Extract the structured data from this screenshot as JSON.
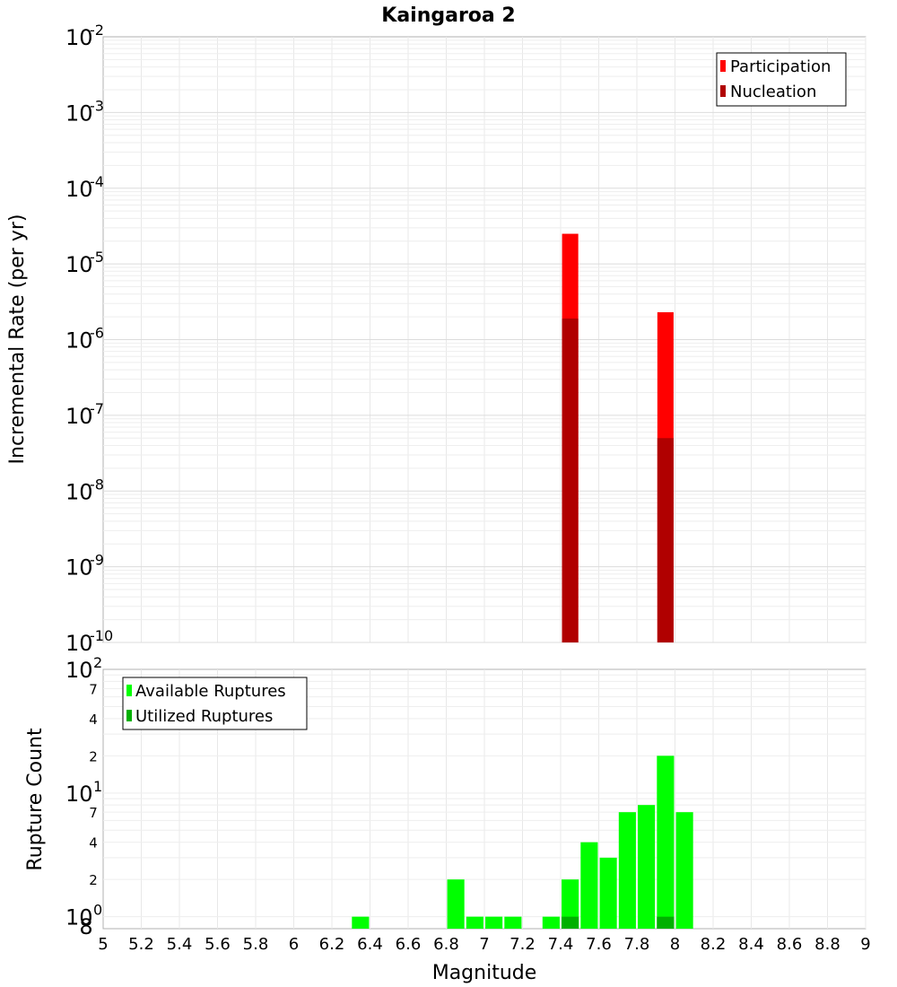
{
  "chart_data": [
    {
      "type": "bar",
      "title": "Kaingaroa 2",
      "ylabel": "Incremental Rate (per yr)",
      "yscale": "log",
      "ylim": [
        1e-10,
        0.01
      ],
      "xlim": [
        5,
        9
      ],
      "grid": true,
      "legend_placement": "top-right",
      "y_ticks": [
        {
          "base": "10",
          "exp": "-10"
        },
        {
          "base": "10",
          "exp": "-9"
        },
        {
          "base": "10",
          "exp": "-8"
        },
        {
          "base": "10",
          "exp": "-7"
        },
        {
          "base": "10",
          "exp": "-6"
        },
        {
          "base": "10",
          "exp": "-5"
        },
        {
          "base": "10",
          "exp": "-4"
        },
        {
          "base": "10",
          "exp": "-3"
        },
        {
          "base": "10",
          "exp": "-2"
        }
      ],
      "series": [
        {
          "name": "Participation",
          "color": "#ff0000",
          "points": [
            {
              "x": 7.45,
              "y": 2.5e-05
            },
            {
              "x": 7.95,
              "y": 2.3e-06
            }
          ]
        },
        {
          "name": "Nucleation",
          "color": "#b00000",
          "points": [
            {
              "x": 7.45,
              "y": 1.9e-06
            },
            {
              "x": 7.95,
              "y": 5e-08
            }
          ]
        }
      ]
    },
    {
      "type": "bar",
      "xlabel": "Magnitude",
      "ylabel": "Rupture Count",
      "yscale": "log",
      "ylim": [
        0.8,
        100
      ],
      "xlim": [
        5,
        9
      ],
      "grid": true,
      "legend_placement": "top-left",
      "x_ticks": [
        "5",
        "5.2",
        "5.4",
        "5.6",
        "5.8",
        "6",
        "6.2",
        "6.4",
        "6.6",
        "6.8",
        "7",
        "7.2",
        "7.4",
        "7.6",
        "7.8",
        "8",
        "8.2",
        "8.4",
        "8.6",
        "8.8",
        "9"
      ],
      "y_major_ticks": [
        {
          "value": 1,
          "base": "10",
          "exp": "0"
        },
        {
          "value": 10,
          "base": "10",
          "exp": "1"
        },
        {
          "value": 100,
          "base": "10",
          "exp": "2"
        }
      ],
      "y_minor_ticks": [
        {
          "value": 0.8,
          "label": "8"
        },
        {
          "value": 2,
          "label": "2"
        },
        {
          "value": 4,
          "label": "4"
        },
        {
          "value": 7,
          "label": "7"
        },
        {
          "value": 20,
          "label": "2"
        },
        {
          "value": 40,
          "label": "4"
        },
        {
          "value": 70,
          "label": "7"
        }
      ],
      "series": [
        {
          "name": "Available Ruptures",
          "color": "#00ff00",
          "points": [
            {
              "x": 6.35,
              "y": 1
            },
            {
              "x": 6.85,
              "y": 2
            },
            {
              "x": 6.95,
              "y": 1
            },
            {
              "x": 7.05,
              "y": 1
            },
            {
              "x": 7.15,
              "y": 1
            },
            {
              "x": 7.35,
              "y": 1
            },
            {
              "x": 7.45,
              "y": 2
            },
            {
              "x": 7.55,
              "y": 4
            },
            {
              "x": 7.65,
              "y": 3
            },
            {
              "x": 7.75,
              "y": 7
            },
            {
              "x": 7.85,
              "y": 8
            },
            {
              "x": 7.95,
              "y": 20
            },
            {
              "x": 8.05,
              "y": 7
            }
          ]
        },
        {
          "name": "Utilized Ruptures",
          "color": "#00b000",
          "points": [
            {
              "x": 7.45,
              "y": 1
            },
            {
              "x": 7.95,
              "y": 1
            }
          ]
        }
      ]
    }
  ]
}
